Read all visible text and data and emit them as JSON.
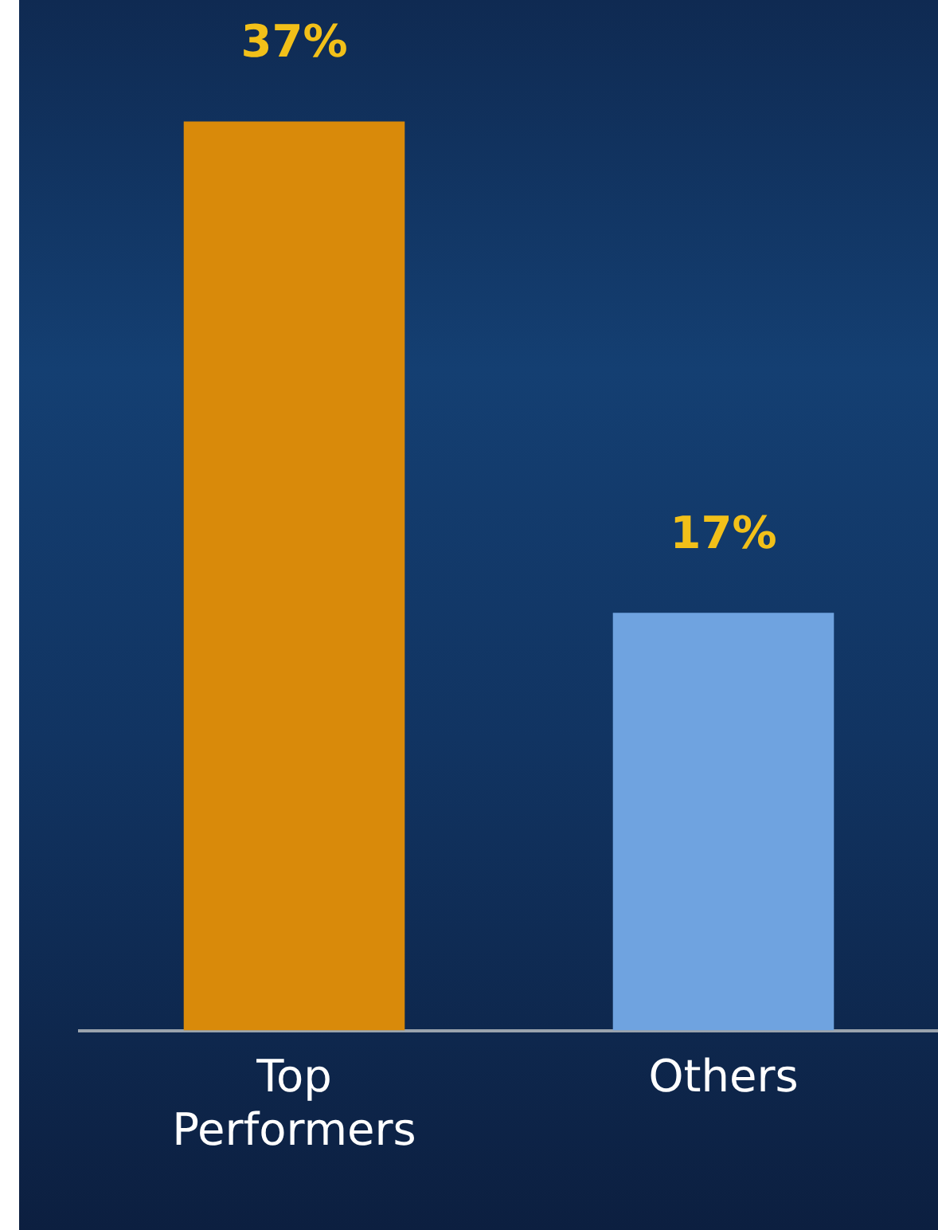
{
  "chart_data": {
    "type": "bar",
    "categories": [
      "Top Performers",
      "Others"
    ],
    "values": [
      37,
      17
    ],
    "colors": [
      "#d98a0a",
      "#6fa3e0"
    ],
    "value_labels": [
      "37%",
      "17%"
    ],
    "grid": false,
    "legend": false
  }
}
